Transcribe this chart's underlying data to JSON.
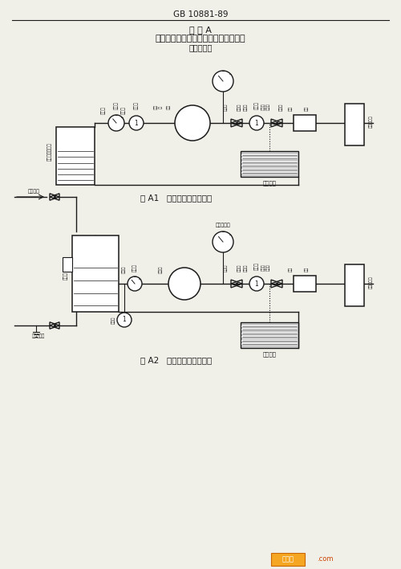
{
  "title_top": "GB 10881-89",
  "title_main": "附 录 A",
  "title_sub": "往复式高压清洗机整机试验装置原理图",
  "title_ref": "（参考件）",
  "fig1_caption": "图 A1   在指定的吸入高度下",
  "fig2_caption": "图 A2   在指定的吸入压力下",
  "bg_color": "#f0efe8",
  "line_color": "#1a1a1a",
  "font_color": "#1a1a1a",
  "watermark_text": "接线图",
  "watermark_dot": ".com"
}
